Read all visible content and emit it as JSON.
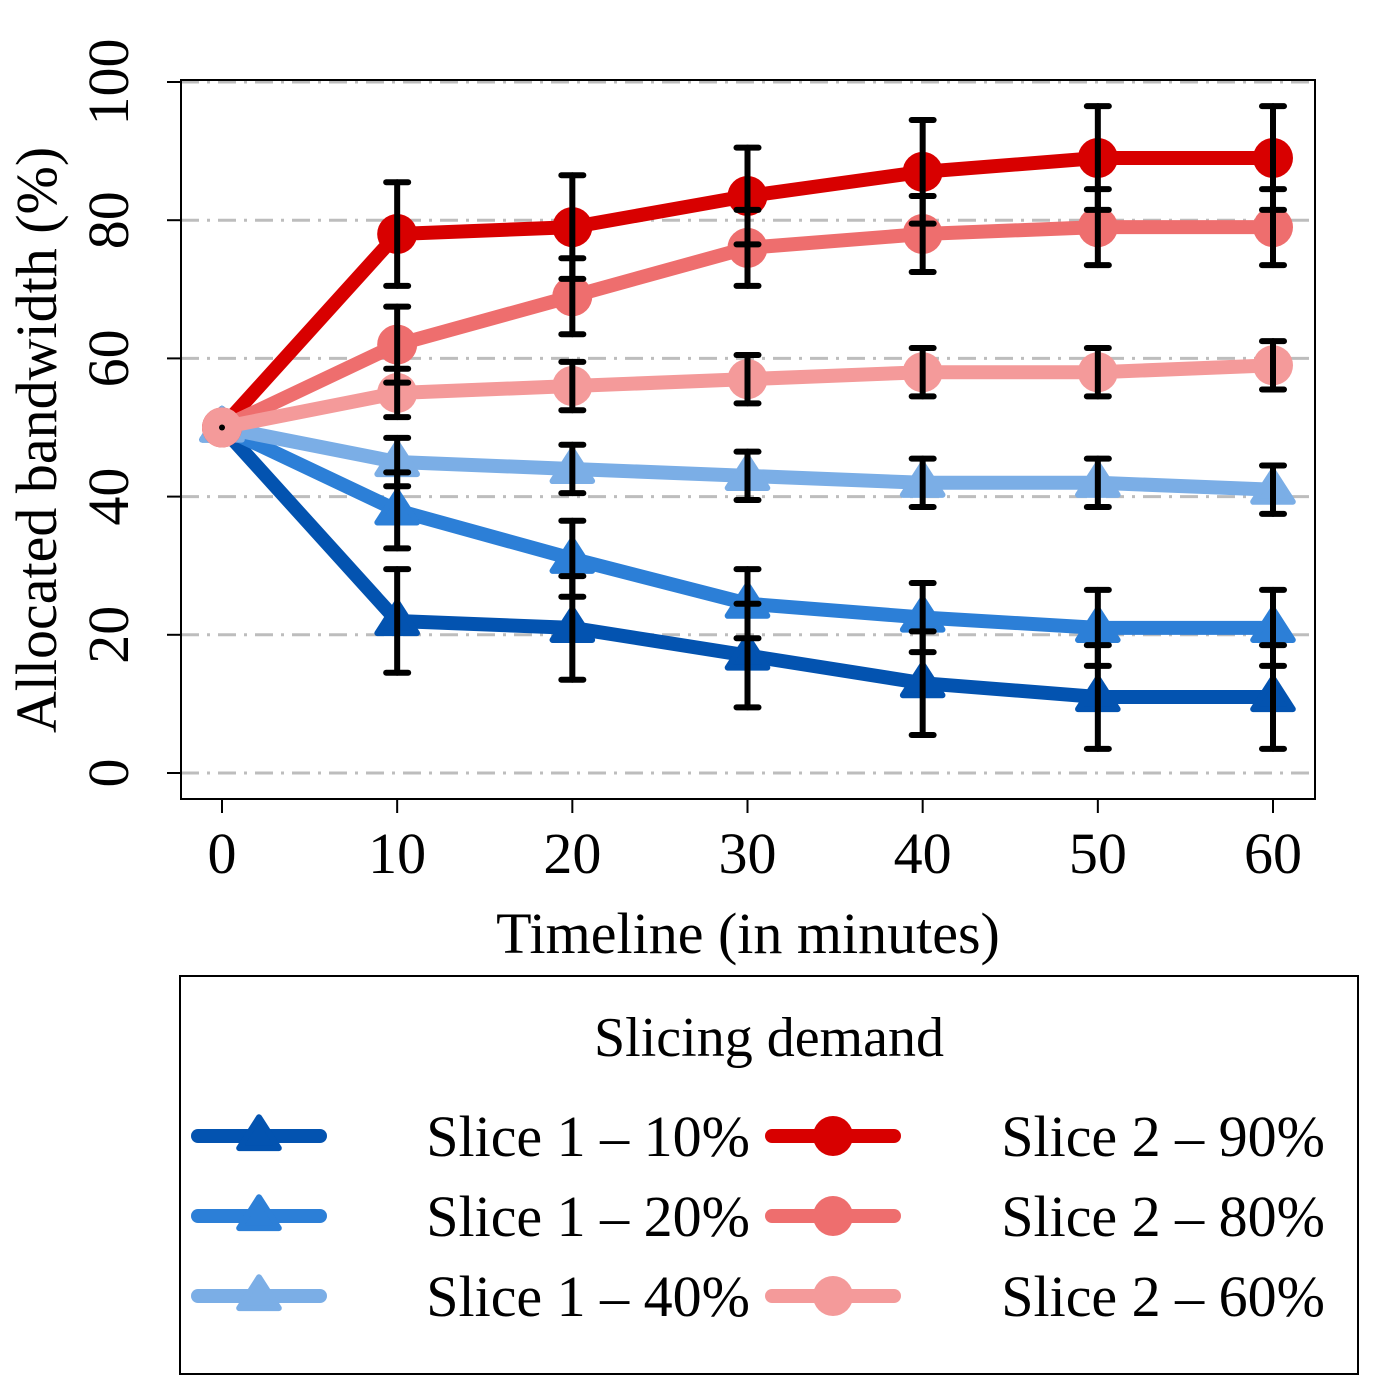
{
  "chart_data": {
    "type": "line",
    "title": "",
    "xlabel": "Timeline (in minutes)",
    "ylabel": "Allocated bandwidth (%)",
    "x": [
      0,
      10,
      20,
      30,
      40,
      50,
      60
    ],
    "x_ticks": [
      "0",
      "10",
      "20",
      "30",
      "40",
      "50",
      "60"
    ],
    "y_ticks": [
      "0",
      "20",
      "40",
      "60",
      "80",
      "100"
    ],
    "xlim": [
      -2.5,
      62.5
    ],
    "ylim": [
      -4,
      100
    ],
    "grid": "horizontal dash-dot",
    "legend_title": "Slicing demand",
    "legend_position": "bottom",
    "series": [
      {
        "name": "Slice 1 – 10%",
        "marker": "triangle",
        "color": "#0353B0",
        "values": [
          50,
          22,
          21,
          17,
          13,
          11,
          11
        ],
        "error": [
          0,
          7.5,
          7.5,
          7.5,
          7.5,
          7.5,
          7.5
        ]
      },
      {
        "name": "Slice 1 – 20%",
        "marker": "triangle",
        "color": "#2C7FD7",
        "values": [
          50,
          38,
          31,
          24.5,
          22.5,
          21,
          21
        ],
        "error": [
          0,
          5.5,
          5.5,
          5,
          5,
          5.5,
          5.5
        ]
      },
      {
        "name": "Slice 1 – 40%",
        "marker": "triangle",
        "color": "#7BAEE6",
        "values": [
          50,
          45,
          44,
          43,
          42,
          42,
          41
        ],
        "error": [
          0,
          3.5,
          3.5,
          3.5,
          3.5,
          3.5,
          3.5
        ]
      },
      {
        "name": "Slice 2 – 90%",
        "marker": "circle",
        "color": "#D80000",
        "values": [
          50,
          78,
          79,
          83.5,
          87,
          89,
          89
        ],
        "error": [
          0,
          7.5,
          7.5,
          7,
          7.5,
          7.5,
          7.5
        ]
      },
      {
        "name": "Slice 2 – 80%",
        "marker": "circle",
        "color": "#EE6E6E",
        "values": [
          50,
          62,
          69,
          76,
          78,
          79,
          79
        ],
        "error": [
          0,
          5.5,
          5.5,
          5.5,
          5.5,
          5.5,
          5.5
        ]
      },
      {
        "name": "Slice 2 – 60%",
        "marker": "circle",
        "color": "#F49A9A",
        "values": [
          50,
          55,
          56,
          57,
          58,
          58,
          59
        ],
        "error": [
          0,
          3.5,
          3.5,
          3.5,
          3.5,
          3.5,
          3.5
        ]
      }
    ]
  }
}
